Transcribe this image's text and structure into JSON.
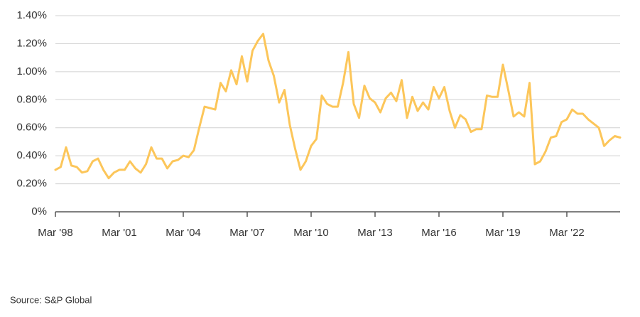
{
  "chart_data": {
    "type": "line",
    "categories": [
      "Mar '98",
      null,
      null,
      null,
      null,
      null,
      null,
      null,
      null,
      null,
      null,
      null,
      "Mar '01",
      null,
      null,
      null,
      null,
      null,
      null,
      null,
      null,
      null,
      null,
      null,
      "Mar '04",
      null,
      null,
      null,
      null,
      null,
      null,
      null,
      null,
      null,
      null,
      null,
      "Mar '07",
      null,
      null,
      null,
      null,
      null,
      null,
      null,
      null,
      null,
      null,
      null,
      "Mar '10",
      null,
      null,
      null,
      null,
      null,
      null,
      null,
      null,
      null,
      null,
      null,
      "Mar '13",
      null,
      null,
      null,
      null,
      null,
      null,
      null,
      null,
      null,
      null,
      null,
      "Mar '16",
      null,
      null,
      null,
      null,
      null,
      null,
      null,
      null,
      null,
      null,
      null,
      "Mar '19",
      null,
      null,
      null,
      null,
      null,
      null,
      null,
      null,
      null,
      null,
      null,
      "Mar '22",
      null,
      null,
      null,
      null,
      null,
      null,
      null,
      null,
      null,
      null
    ],
    "values": [
      0.3,
      0.32,
      0.46,
      0.33,
      0.32,
      0.28,
      0.29,
      0.36,
      0.38,
      0.3,
      0.24,
      0.28,
      0.3,
      0.3,
      0.36,
      0.31,
      0.28,
      0.34,
      0.46,
      0.38,
      0.38,
      0.31,
      0.36,
      0.37,
      0.4,
      0.39,
      0.44,
      0.6,
      0.75,
      0.74,
      0.73,
      0.92,
      0.86,
      1.01,
      0.91,
      1.11,
      0.93,
      1.15,
      1.22,
      1.27,
      1.08,
      0.97,
      0.78,
      0.87,
      0.62,
      0.45,
      0.3,
      0.36,
      0.47,
      0.52,
      0.83,
      0.77,
      0.75,
      0.75,
      0.92,
      1.14,
      0.77,
      0.67,
      0.9,
      0.81,
      0.78,
      0.71,
      0.81,
      0.85,
      0.79,
      0.94,
      0.67,
      0.82,
      0.72,
      0.78,
      0.73,
      0.89,
      0.81,
      0.89,
      0.72,
      0.6,
      0.69,
      0.66,
      0.57,
      0.59,
      0.59,
      0.83,
      0.82,
      0.82,
      1.05,
      0.87,
      0.68,
      0.71,
      0.68,
      0.92,
      0.34,
      0.36,
      0.43,
      0.53,
      0.54,
      0.64,
      0.66,
      0.73,
      0.7,
      0.7,
      0.66,
      0.63,
      0.6,
      0.47,
      0.51,
      0.54,
      0.53
    ],
    "color": "#fcc65a",
    "ylim": [
      0,
      1.4
    ],
    "yticks": [
      {
        "value": 0,
        "label": "0%"
      },
      {
        "value": 0.2,
        "label": "0.20%"
      },
      {
        "value": 0.4,
        "label": "0.40%"
      },
      {
        "value": 0.6,
        "label": "0.60%"
      },
      {
        "value": 0.8,
        "label": "0.80%"
      },
      {
        "value": 1.0,
        "label": "1.00%"
      },
      {
        "value": 1.2,
        "label": "1.20%"
      },
      {
        "value": 1.4,
        "label": "1.40%"
      }
    ],
    "grid": true,
    "source": "Source: S&P Global"
  }
}
